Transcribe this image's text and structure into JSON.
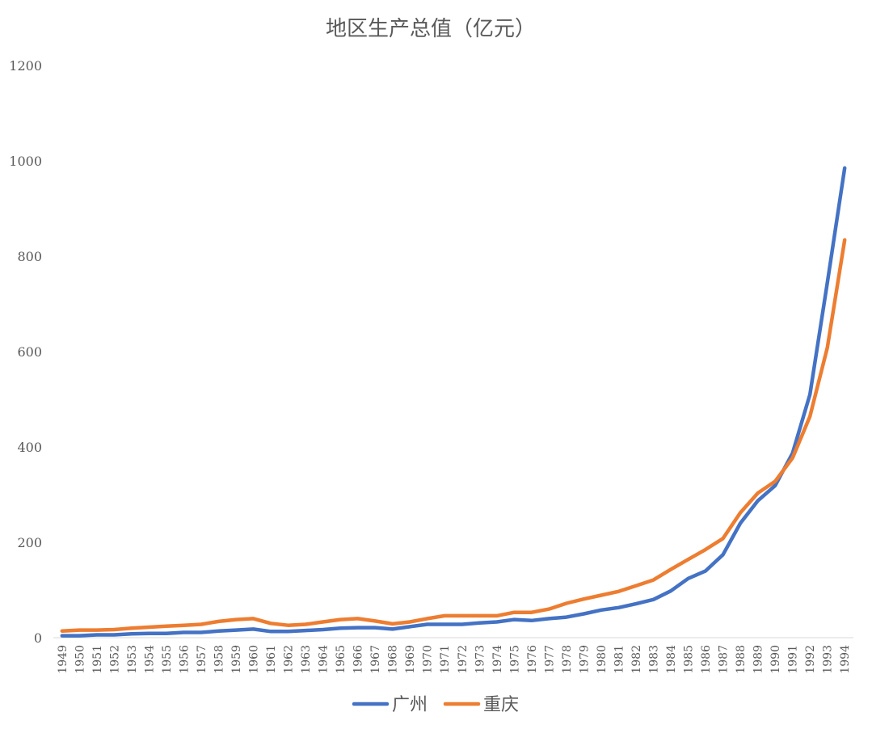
{
  "chart_data": {
    "type": "line",
    "title": "地区生产总值（亿元）",
    "xlabel": "",
    "ylabel": "",
    "ylim": [
      0,
      1200
    ],
    "yticks": [
      0,
      200,
      400,
      600,
      800,
      1000,
      1200
    ],
    "grid": false,
    "legend": "bottom",
    "categories": [
      "1949",
      "1950",
      "1951",
      "1952",
      "1953",
      "1954",
      "1955",
      "1956",
      "1957",
      "1958",
      "1959",
      "1960",
      "1961",
      "1962",
      "1963",
      "1964",
      "1965",
      "1966",
      "1967",
      "1968",
      "1969",
      "1970",
      "1971",
      "1972",
      "1973",
      "1974",
      "1975",
      "1976",
      "1977",
      "1978",
      "1979",
      "1980",
      "1981",
      "1982",
      "1983",
      "1984",
      "1985",
      "1986",
      "1987",
      "1988",
      "1989",
      "1990",
      "1991",
      "1992",
      "1993",
      "1994"
    ],
    "series": [
      {
        "name": "广州",
        "color": "#4472C4",
        "values": [
          4,
          4,
          6,
          6,
          8,
          9,
          9,
          11,
          11,
          14,
          16,
          18,
          13,
          13,
          15,
          17,
          20,
          21,
          21,
          18,
          23,
          28,
          28,
          28,
          31,
          33,
          38,
          36,
          40,
          43,
          50,
          58,
          63,
          71,
          80,
          98,
          124,
          140,
          174,
          240,
          287,
          319,
          387,
          510,
          744,
          985
        ]
      },
      {
        "name": "重庆",
        "color": "#ED7D31",
        "values": [
          14,
          16,
          16,
          17,
          20,
          22,
          24,
          26,
          28,
          34,
          38,
          40,
          30,
          26,
          28,
          33,
          38,
          40,
          35,
          29,
          33,
          40,
          46,
          46,
          46,
          46,
          53,
          53,
          60,
          72,
          81,
          89,
          97,
          109,
          121,
          143,
          164,
          185,
          208,
          262,
          303,
          328,
          377,
          464,
          608,
          834
        ]
      }
    ]
  }
}
